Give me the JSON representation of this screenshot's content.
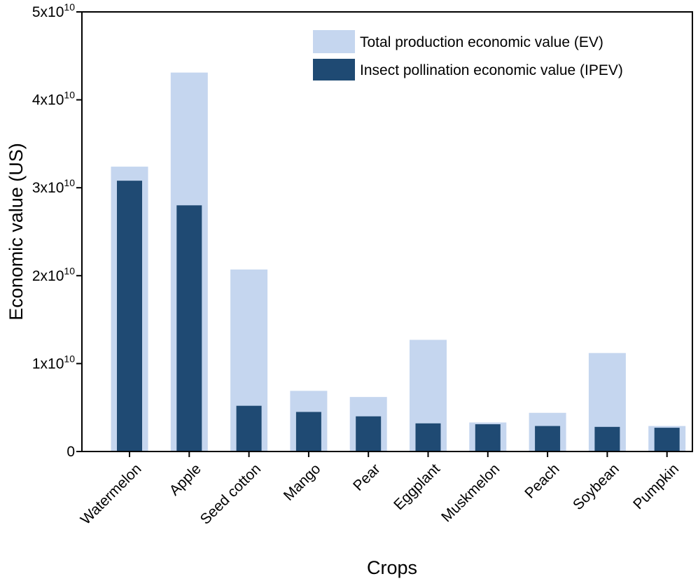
{
  "chart_data": {
    "type": "bar",
    "xlabel": "Crops",
    "ylabel": "Economic value (US)",
    "ylim": [
      0,
      50000000000
    ],
    "y_ticks": [
      {
        "value": 0,
        "label": "0",
        "exp": ""
      },
      {
        "value": 10000000000,
        "label": "1x10",
        "exp": "10"
      },
      {
        "value": 20000000000,
        "label": "2x10",
        "exp": "10"
      },
      {
        "value": 30000000000,
        "label": "3x10",
        "exp": "10"
      },
      {
        "value": 40000000000,
        "label": "4x10",
        "exp": "10"
      },
      {
        "value": 50000000000,
        "label": "5x10",
        "exp": "10"
      }
    ],
    "categories": [
      "Watermelon",
      "Apple",
      "Seed cotton",
      "Mango",
      "Pear",
      "Eggplant",
      "Muskmelon",
      "Peach",
      "Soybean",
      "Pumpkin"
    ],
    "series": [
      {
        "name": "Total production economic value (EV)",
        "color": "#c5d6ef",
        "values": [
          32400000000,
          43100000000,
          20700000000,
          6900000000,
          6200000000,
          12700000000,
          3300000000,
          4400000000,
          11200000000,
          2900000000
        ]
      },
      {
        "name": "Insect pollination economic value (IPEV)",
        "color": "#1f4a73",
        "values": [
          30800000000,
          28000000000,
          5200000000,
          4500000000,
          4000000000,
          3200000000,
          3100000000,
          2900000000,
          2800000000,
          2700000000
        ]
      }
    ],
    "legend_position": "top-right",
    "grid": false
  }
}
